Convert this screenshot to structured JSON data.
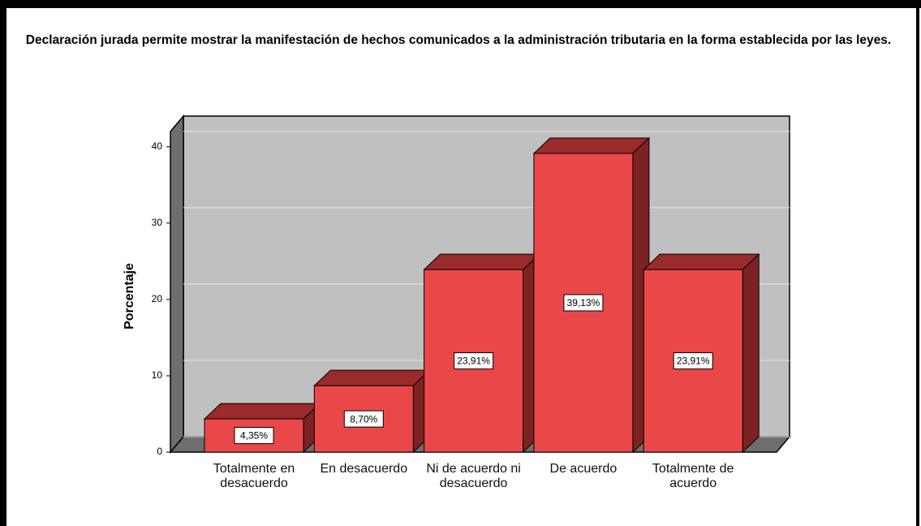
{
  "chart_data": {
    "type": "bar",
    "title": "Declaración jurada permite mostrar la manifestación de hechos comunicados a la administración tributaria en la forma establecida por las leyes.",
    "ylabel": "Porcentaje",
    "categories": [
      "Totalmente en desacuerdo",
      "En desacuerdo",
      "Ni de acuerdo ni desacuerdo",
      "De acuerdo",
      "Totalmente de acuerdo"
    ],
    "values": [
      4.35,
      8.7,
      23.91,
      39.13,
      23.91
    ],
    "value_labels": [
      "4,35%",
      "8,70%",
      "23,91%",
      "39,13%",
      "23,91%"
    ],
    "color": "#ea4848",
    "ylim": [
      0,
      42
    ],
    "yticks": [
      0,
      10,
      20,
      30,
      40
    ],
    "grid": true
  }
}
